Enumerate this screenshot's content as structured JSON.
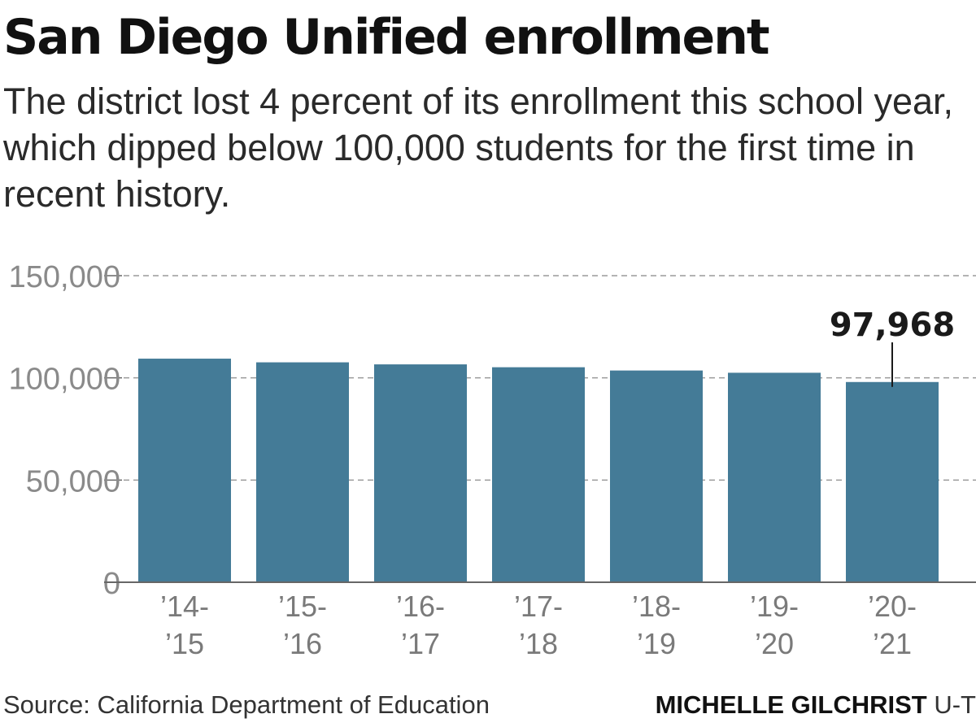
{
  "header": {
    "title": "San Diego Unified enrollment",
    "subtitle": "The district lost 4 percent of its enrollment this school year, which dipped below 100,000 students for the first time in recent history."
  },
  "footer": {
    "source": "Source: California Department of Education",
    "credit_name": "MICHELLE GILCHRIST",
    "credit_org": "U-T"
  },
  "colors": {
    "bar": "#447b97",
    "grid": "#9a9a9a",
    "axis": "#666666",
    "tick_label": "#8a8a8a",
    "category_label": "#7a7a7a",
    "annotation": "#1a1a1a"
  },
  "chart_data": {
    "type": "bar",
    "categories": [
      {
        "line1": "’14-",
        "line2": "’15"
      },
      {
        "line1": "’15-",
        "line2": "’16"
      },
      {
        "line1": "’16-",
        "line2": "’17"
      },
      {
        "line1": "’17-",
        "line2": "’18"
      },
      {
        "line1": "’18-",
        "line2": "’19"
      },
      {
        "line1": "’19-",
        "line2": "’20"
      },
      {
        "line1": "’20-",
        "line2": "’21"
      }
    ],
    "values": [
      109400,
      107600,
      106600,
      105200,
      103600,
      102500,
      97968
    ],
    "ylim": [
      0,
      150000
    ],
    "yticks": [
      {
        "value": 0,
        "label": "0"
      },
      {
        "value": 50000,
        "label": "50,000"
      },
      {
        "value": 100000,
        "label": "100,000"
      },
      {
        "value": 150000,
        "label": "150,000"
      }
    ],
    "grid": true,
    "annotation": {
      "index": 6,
      "label": "97,968"
    }
  }
}
